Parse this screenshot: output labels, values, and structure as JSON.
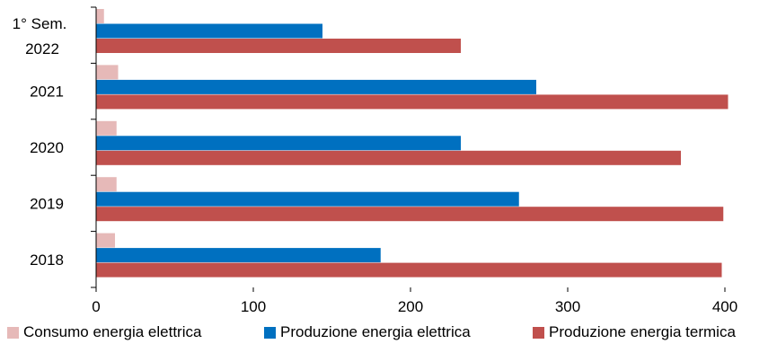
{
  "chart_data": {
    "type": "bar",
    "orientation": "horizontal",
    "categories": [
      "1° Sem.\n2022",
      "2021",
      "2020",
      "2019",
      "2018"
    ],
    "series": [
      {
        "name": "Consumo energia elettrica",
        "color": "#e6b9b8",
        "values": [
          5,
          14,
          13,
          13,
          12
        ]
      },
      {
        "name": "Produzione energia elettrica",
        "color": "#0070c0",
        "values": [
          144,
          280,
          232,
          269,
          181
        ]
      },
      {
        "name": "Produzione energia termica",
        "color": "#c0504d",
        "values": [
          232,
          402,
          372,
          399,
          398
        ]
      }
    ],
    "xlim": [
      0,
      400
    ],
    "xticks": [
      "0",
      "100",
      "200",
      "300",
      "400"
    ],
    "grid": false,
    "legend_position": "bottom"
  }
}
